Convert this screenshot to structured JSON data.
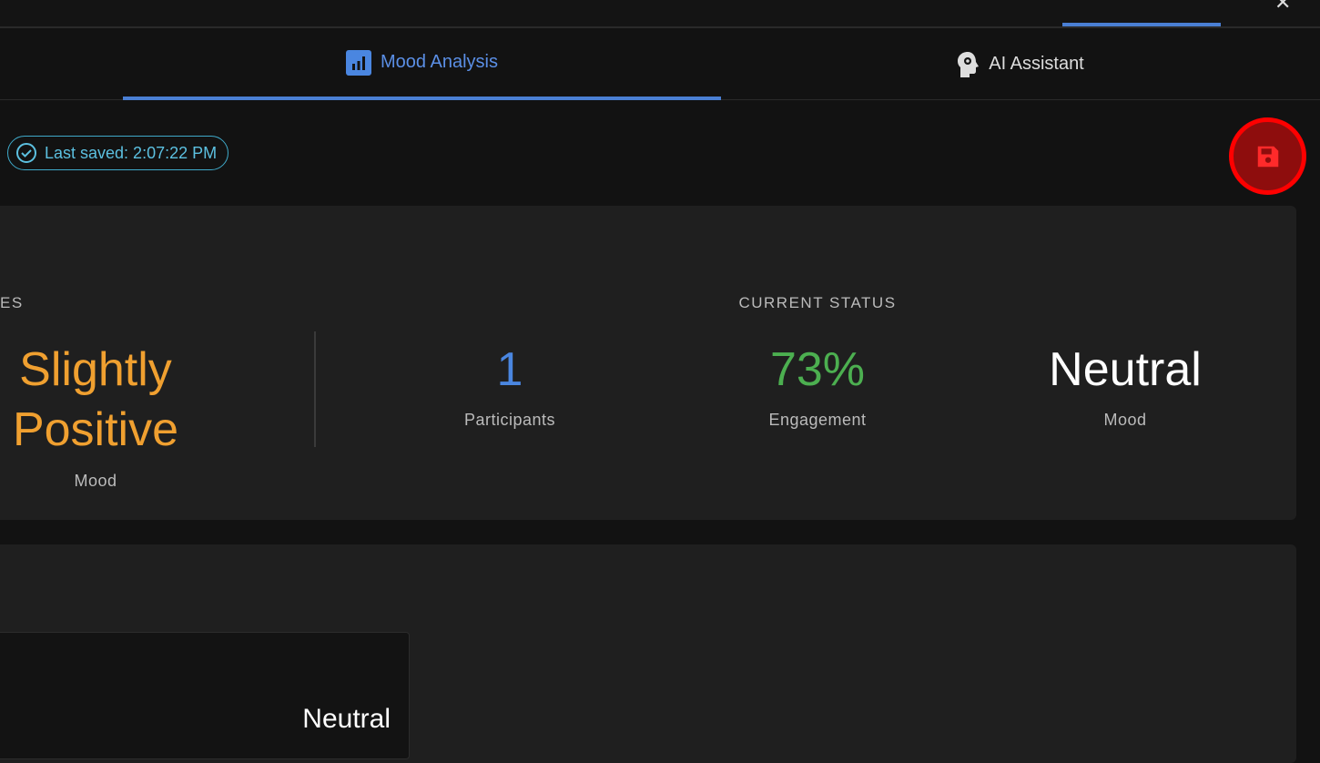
{
  "topbar": {
    "close_icon": "close-icon"
  },
  "tabs": [
    {
      "label": "Mood Analysis",
      "icon": "bar-chart-icon",
      "active": true
    },
    {
      "label": "AI Assistant",
      "icon": "head-gear-icon",
      "active": false
    }
  ],
  "status": {
    "last_saved": "Last saved: 2:07:22 PM"
  },
  "save_button": {
    "icon": "floppy-disk-icon",
    "highlight_color": "#ff0000"
  },
  "summary": {
    "left_section_label": "ES",
    "overall_mood": {
      "value": "Slightly Positive",
      "line1": "Slightly",
      "line2": "Positive",
      "label": "Mood",
      "color": "#f0a030"
    },
    "current_status_label": "CURRENT STATUS",
    "participants": {
      "value": "1",
      "label": "Participants",
      "color": "#4a86e0"
    },
    "engagement": {
      "value": "73%",
      "label": "Engagement",
      "color": "#4caf50"
    },
    "mood": {
      "value": "Neutral",
      "label": "Mood",
      "color": "#ffffff"
    }
  },
  "detail": {
    "mood_value": "Neutral"
  }
}
